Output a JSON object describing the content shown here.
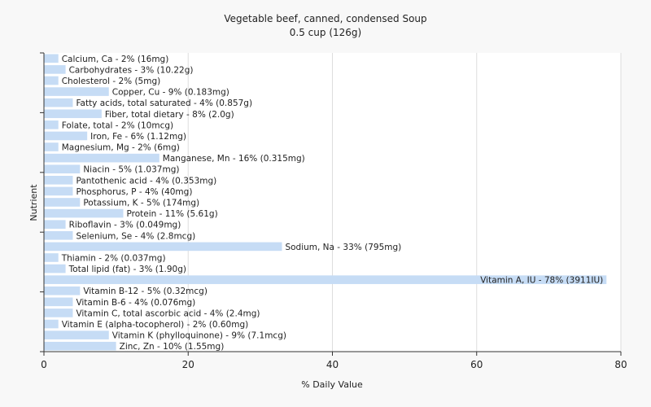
{
  "chart_data": {
    "type": "bar",
    "orientation": "horizontal",
    "title": "Vegetable beef, canned, condensed Soup",
    "subtitle": "0.5 cup (126g)",
    "xlabel": "% Daily Value",
    "ylabel": "Nutrient",
    "xlim": [
      0,
      80
    ],
    "xticks": [
      "0",
      "20",
      "40",
      "60",
      "80"
    ],
    "grid": true,
    "bar_color": "#c6dcf5",
    "categories": [
      "Calcium, Ca - 2% (16mg)",
      "Carbohydrates - 3% (10.22g)",
      "Cholesterol - 2% (5mg)",
      "Copper, Cu - 9% (0.183mg)",
      "Fatty acids, total saturated - 4% (0.857g)",
      "Fiber, total dietary - 8% (2.0g)",
      "Folate, total - 2% (10mcg)",
      "Iron, Fe - 6% (1.12mg)",
      "Magnesium, Mg - 2% (6mg)",
      "Manganese, Mn - 16% (0.315mg)",
      "Niacin - 5% (1.037mg)",
      "Pantothenic acid - 4% (0.353mg)",
      "Phosphorus, P - 4% (40mg)",
      "Potassium, K - 5% (174mg)",
      "Protein - 11% (5.61g)",
      "Riboflavin - 3% (0.049mg)",
      "Selenium, Se - 4% (2.8mcg)",
      "Sodium, Na - 33% (795mg)",
      "Thiamin - 2% (0.037mg)",
      "Total lipid (fat) - 3% (1.90g)",
      "Vitamin A, IU - 78% (3911IU)",
      "Vitamin B-12 - 5% (0.32mcg)",
      "Vitamin B-6 - 4% (0.076mg)",
      "Vitamin C, total ascorbic acid - 4% (2.4mg)",
      "Vitamin E (alpha-tocopherol) - 2% (0.60mg)",
      "Vitamin K (phylloquinone) - 9% (7.1mcg)",
      "Zinc, Zn - 10% (1.55mg)"
    ],
    "values": [
      2,
      3,
      2,
      9,
      4,
      8,
      2,
      6,
      2,
      16,
      5,
      4,
      4,
      5,
      11,
      3,
      4,
      33,
      2,
      3,
      78,
      5,
      4,
      4,
      2,
      9,
      10
    ]
  }
}
